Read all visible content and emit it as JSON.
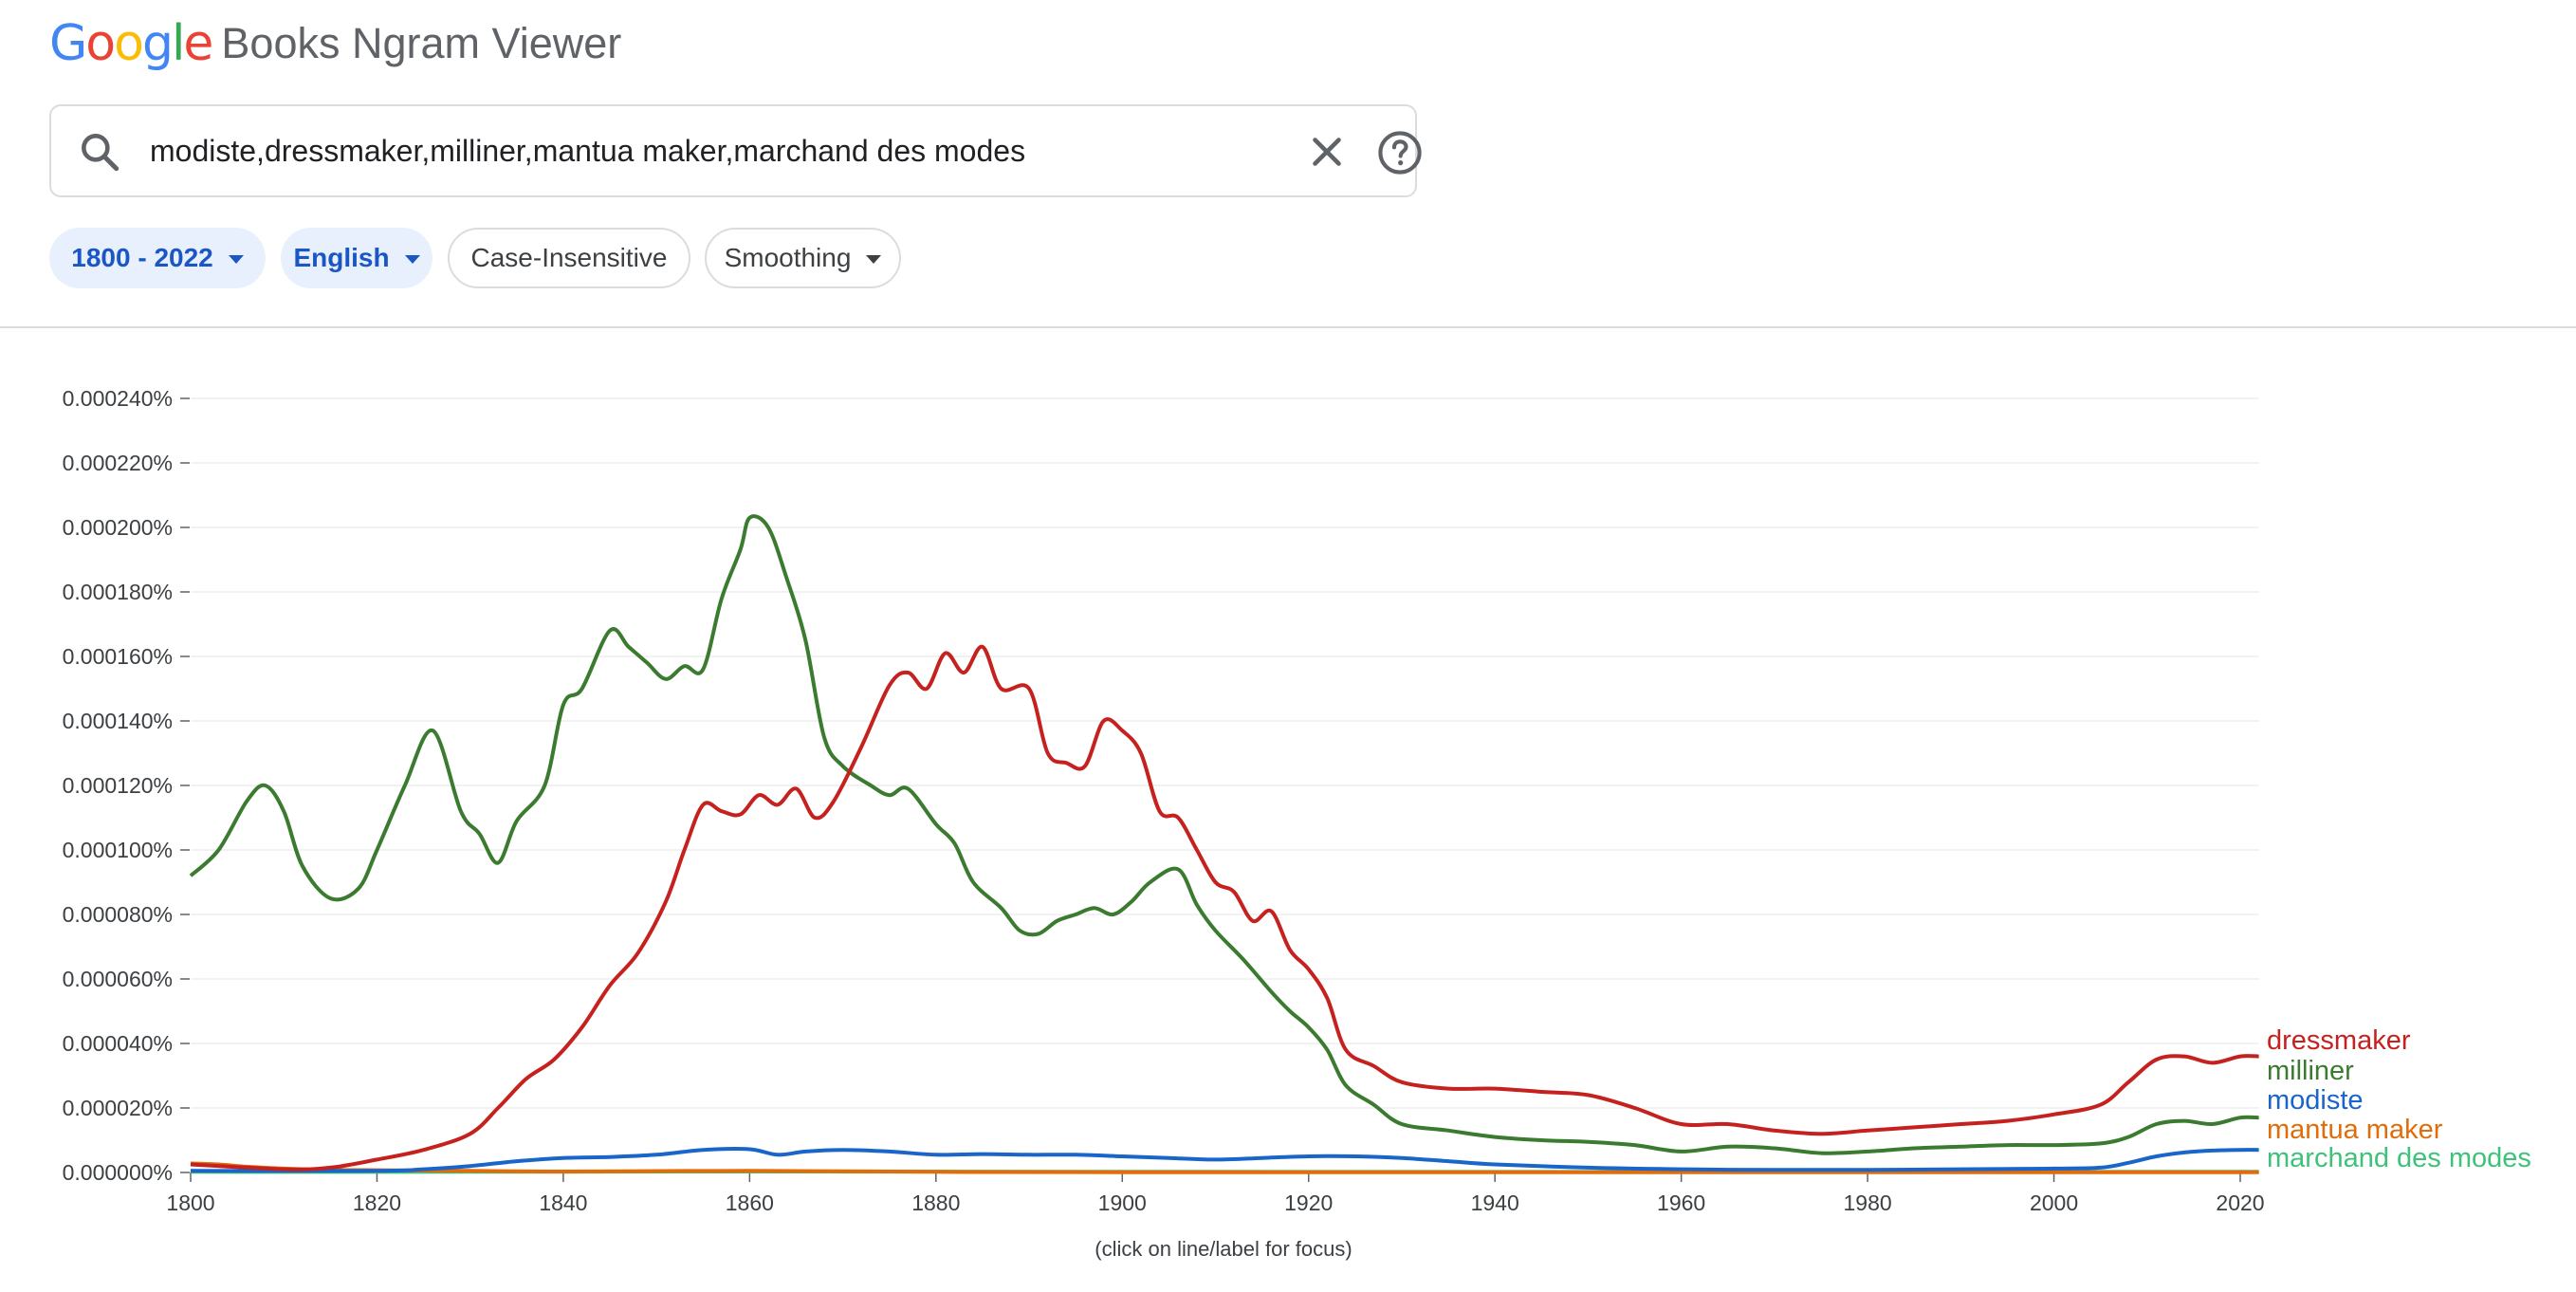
{
  "header": {
    "logo_text": "Google",
    "logo_colors": [
      "#4285F4",
      "#EA4335",
      "#FBBC05",
      "#4285F4",
      "#34A853",
      "#EA4335"
    ],
    "app_title": "Books Ngram Viewer"
  },
  "search": {
    "value": "modiste,dressmaker,milliner,mantua maker,marchand des modes",
    "search_icon": "search-icon",
    "clear_icon": "close-icon",
    "help_icon": "help-icon"
  },
  "filters": {
    "year_range": "1800 - 2022",
    "corpus": "English",
    "case": "Case-Insensitive",
    "smoothing": "Smoothing"
  },
  "footnote": "(click on line/label for focus)",
  "chart_data": {
    "type": "line",
    "x_range": [
      1800,
      2022
    ],
    "ylim": [
      0,
      0.00024
    ],
    "y_ticks": [
      "0.000000%",
      "0.000020%",
      "0.000040%",
      "0.000060%",
      "0.000080%",
      "0.000100%",
      "0.000120%",
      "0.000140%",
      "0.000160%",
      "0.000180%",
      "0.000200%",
      "0.000220%",
      "0.000240%"
    ],
    "x_ticks": [
      "1800",
      "1820",
      "1840",
      "1860",
      "1880",
      "1900",
      "1920",
      "1940",
      "1960",
      "1980",
      "2000",
      "2020"
    ],
    "grid": true,
    "legend": "right-end labels",
    "series": [
      {
        "name": "dressmaker",
        "color": "#c5221f",
        "points": [
          [
            1800,
            2.5e-06
          ],
          [
            1810,
            1e-06
          ],
          [
            1815,
            1.5e-06
          ],
          [
            1820,
            4e-06
          ],
          [
            1825,
            7e-06
          ],
          [
            1830,
            1.2e-05
          ],
          [
            1833,
            2e-05
          ],
          [
            1836,
            2.9e-05
          ],
          [
            1839,
            3.5e-05
          ],
          [
            1842,
            4.5e-05
          ],
          [
            1845,
            5.8e-05
          ],
          [
            1848,
            6.8e-05
          ],
          [
            1851,
            8.4e-05
          ],
          [
            1853,
            0.0001
          ],
          [
            1855,
            0.000114
          ],
          [
            1857,
            0.000112
          ],
          [
            1859,
            0.000111
          ],
          [
            1861,
            0.000117
          ],
          [
            1863,
            0.000114
          ],
          [
            1865,
            0.000119
          ],
          [
            1867,
            0.00011
          ],
          [
            1869,
            0.000115
          ],
          [
            1872,
            0.000132
          ],
          [
            1875,
            0.000151
          ],
          [
            1877,
            0.000155
          ],
          [
            1879,
            0.00015
          ],
          [
            1881,
            0.000161
          ],
          [
            1883,
            0.000155
          ],
          [
            1885,
            0.000163
          ],
          [
            1887,
            0.00015
          ],
          [
            1890,
            0.00015
          ],
          [
            1892,
            0.00013
          ],
          [
            1894,
            0.000127
          ],
          [
            1896,
            0.000126
          ],
          [
            1898,
            0.00014
          ],
          [
            1900,
            0.000137
          ],
          [
            1902,
            0.00013
          ],
          [
            1904,
            0.000112
          ],
          [
            1906,
            0.00011
          ],
          [
            1908,
            0.0001
          ],
          [
            1910,
            9e-05
          ],
          [
            1912,
            8.7e-05
          ],
          [
            1914,
            7.8e-05
          ],
          [
            1916,
            8.1e-05
          ],
          [
            1918,
            6.9e-05
          ],
          [
            1920,
            6.3e-05
          ],
          [
            1922,
            5.4e-05
          ],
          [
            1924,
            3.8e-05
          ],
          [
            1927,
            3.3e-05
          ],
          [
            1930,
            2.8e-05
          ],
          [
            1935,
            2.6e-05
          ],
          [
            1940,
            2.6e-05
          ],
          [
            1945,
            2.5e-05
          ],
          [
            1950,
            2.4e-05
          ],
          [
            1955,
            2e-05
          ],
          [
            1960,
            1.5e-05
          ],
          [
            1965,
            1.5e-05
          ],
          [
            1970,
            1.3e-05
          ],
          [
            1975,
            1.2e-05
          ],
          [
            1980,
            1.3e-05
          ],
          [
            1985,
            1.4e-05
          ],
          [
            1990,
            1.5e-05
          ],
          [
            1995,
            1.6e-05
          ],
          [
            2000,
            1.8e-05
          ],
          [
            2005,
            2.1e-05
          ],
          [
            2008,
            2.8e-05
          ],
          [
            2011,
            3.5e-05
          ],
          [
            2014,
            3.6e-05
          ],
          [
            2017,
            3.4e-05
          ],
          [
            2020,
            3.6e-05
          ],
          [
            2022,
            3.6e-05
          ]
        ]
      },
      {
        "name": "milliner",
        "color": "#3b7b2f",
        "points": [
          [
            1800,
            9.2e-05
          ],
          [
            1803,
            0.0001
          ],
          [
            1806,
            0.000115
          ],
          [
            1808,
            0.00012
          ],
          [
            1810,
            0.000112
          ],
          [
            1812,
            9.5e-05
          ],
          [
            1815,
            8.5e-05
          ],
          [
            1818,
            8.8e-05
          ],
          [
            1820,
            0.0001
          ],
          [
            1823,
            0.00012
          ],
          [
            1826,
            0.000137
          ],
          [
            1829,
            0.000112
          ],
          [
            1831,
            0.000105
          ],
          [
            1833,
            9.6e-05
          ],
          [
            1835,
            0.000109
          ],
          [
            1838,
            0.00012
          ],
          [
            1840,
            0.000145
          ],
          [
            1842,
            0.00015
          ],
          [
            1845,
            0.000168
          ],
          [
            1847,
            0.000163
          ],
          [
            1849,
            0.000158
          ],
          [
            1851,
            0.000153
          ],
          [
            1853,
            0.000157
          ],
          [
            1855,
            0.000156
          ],
          [
            1857,
            0.000178
          ],
          [
            1859,
            0.000193
          ],
          [
            1860,
            0.000203
          ],
          [
            1862,
            0.0002
          ],
          [
            1864,
            0.000184
          ],
          [
            1866,
            0.000165
          ],
          [
            1868,
            0.000135
          ],
          [
            1870,
            0.000126
          ],
          [
            1873,
            0.00012
          ],
          [
            1875,
            0.000117
          ],
          [
            1877,
            0.000119
          ],
          [
            1880,
            0.000108
          ],
          [
            1882,
            0.000102
          ],
          [
            1884,
            9e-05
          ],
          [
            1887,
            8.2e-05
          ],
          [
            1889,
            7.5e-05
          ],
          [
            1891,
            7.4e-05
          ],
          [
            1893,
            7.8e-05
          ],
          [
            1895,
            8e-05
          ],
          [
            1897,
            8.2e-05
          ],
          [
            1899,
            8e-05
          ],
          [
            1901,
            8.4e-05
          ],
          [
            1903,
            9e-05
          ],
          [
            1906,
            9.4e-05
          ],
          [
            1908,
            8.3e-05
          ],
          [
            1910,
            7.5e-05
          ],
          [
            1913,
            6.6e-05
          ],
          [
            1916,
            5.6e-05
          ],
          [
            1918,
            5e-05
          ],
          [
            1920,
            4.5e-05
          ],
          [
            1922,
            3.8e-05
          ],
          [
            1924,
            2.7e-05
          ],
          [
            1927,
            2.1e-05
          ],
          [
            1930,
            1.5e-05
          ],
          [
            1935,
            1.3e-05
          ],
          [
            1940,
            1.1e-05
          ],
          [
            1945,
            1e-05
          ],
          [
            1950,
            9.5e-06
          ],
          [
            1955,
            8.5e-06
          ],
          [
            1960,
            6.5e-06
          ],
          [
            1965,
            8e-06
          ],
          [
            1970,
            7.5e-06
          ],
          [
            1975,
            6e-06
          ],
          [
            1980,
            6.5e-06
          ],
          [
            1985,
            7.5e-06
          ],
          [
            1990,
            8e-06
          ],
          [
            1995,
            8.5e-06
          ],
          [
            2000,
            8.5e-06
          ],
          [
            2005,
            9e-06
          ],
          [
            2008,
            1.1e-05
          ],
          [
            2011,
            1.5e-05
          ],
          [
            2014,
            1.6e-05
          ],
          [
            2017,
            1.5e-05
          ],
          [
            2020,
            1.7e-05
          ],
          [
            2022,
            1.7e-05
          ]
        ]
      },
      {
        "name": "modiste",
        "color": "#1a65c9",
        "points": [
          [
            1800,
            5e-07
          ],
          [
            1820,
            5e-07
          ],
          [
            1825,
            1e-06
          ],
          [
            1830,
            2e-06
          ],
          [
            1835,
            3.5e-06
          ],
          [
            1840,
            4.5e-06
          ],
          [
            1845,
            4.8e-06
          ],
          [
            1850,
            5.5e-06
          ],
          [
            1855,
            7e-06
          ],
          [
            1860,
            7.2e-06
          ],
          [
            1863,
            5.5e-06
          ],
          [
            1866,
            6.5e-06
          ],
          [
            1870,
            7e-06
          ],
          [
            1875,
            6.5e-06
          ],
          [
            1880,
            5.5e-06
          ],
          [
            1885,
            5.7e-06
          ],
          [
            1890,
            5.5e-06
          ],
          [
            1895,
            5.5e-06
          ],
          [
            1900,
            5e-06
          ],
          [
            1905,
            4.5e-06
          ],
          [
            1910,
            4e-06
          ],
          [
            1915,
            4.5e-06
          ],
          [
            1920,
            5e-06
          ],
          [
            1925,
            5e-06
          ],
          [
            1930,
            4.5e-06
          ],
          [
            1935,
            3.5e-06
          ],
          [
            1940,
            2.5e-06
          ],
          [
            1950,
            1.5e-06
          ],
          [
            1960,
            1e-06
          ],
          [
            1970,
            8e-07
          ],
          [
            1980,
            8e-07
          ],
          [
            1990,
            1e-06
          ],
          [
            2000,
            1.2e-06
          ],
          [
            2005,
            1.5e-06
          ],
          [
            2008,
            3e-06
          ],
          [
            2011,
            5e-06
          ],
          [
            2014,
            6.2e-06
          ],
          [
            2017,
            6.8e-06
          ],
          [
            2020,
            7e-06
          ],
          [
            2022,
            7e-06
          ]
        ]
      },
      {
        "name": "mantua maker",
        "color": "#e06c0a",
        "points": [
          [
            1800,
            2.8e-06
          ],
          [
            1803,
            2.5e-06
          ],
          [
            1806,
            1.8e-06
          ],
          [
            1810,
            1.2e-06
          ],
          [
            1815,
            8e-07
          ],
          [
            1820,
            7e-07
          ],
          [
            1830,
            5e-07
          ],
          [
            1840,
            3e-07
          ],
          [
            1860,
            5e-07
          ],
          [
            1880,
            2e-07
          ],
          [
            1900,
            1e-07
          ],
          [
            2022,
            1e-07
          ]
        ]
      },
      {
        "name": "marchand des modes",
        "color": "#3ec27a",
        "points": [
          [
            1800,
            2e-07
          ],
          [
            1830,
            2e-07
          ],
          [
            1860,
            3e-07
          ],
          [
            1900,
            2e-07
          ],
          [
            2022,
            2e-07
          ]
        ]
      }
    ]
  }
}
